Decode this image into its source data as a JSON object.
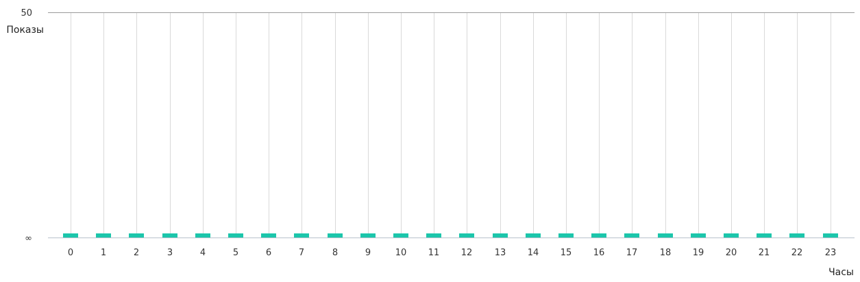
{
  "chart_data": {
    "type": "bar",
    "title": "",
    "xlabel": "Часы",
    "ylabel": "Показы",
    "y_ticks": [
      "50",
      "∞"
    ],
    "categories": [
      "0",
      "1",
      "2",
      "3",
      "4",
      "5",
      "6",
      "7",
      "8",
      "9",
      "10",
      "11",
      "12",
      "13",
      "14",
      "15",
      "16",
      "17",
      "18",
      "19",
      "20",
      "21",
      "22",
      "23"
    ],
    "values": [
      0,
      0,
      0,
      0,
      0,
      0,
      0,
      0,
      0,
      0,
      0,
      0,
      0,
      0,
      0,
      0,
      0,
      0,
      0,
      0,
      0,
      0,
      0,
      0
    ],
    "ylim": [
      0,
      50
    ],
    "grid": "vertical",
    "colors": {
      "bar": "#1cc6ab",
      "grid": "#d9d9d9",
      "axis": "#b8c2cc",
      "top_line": "#9a9a9a"
    }
  }
}
